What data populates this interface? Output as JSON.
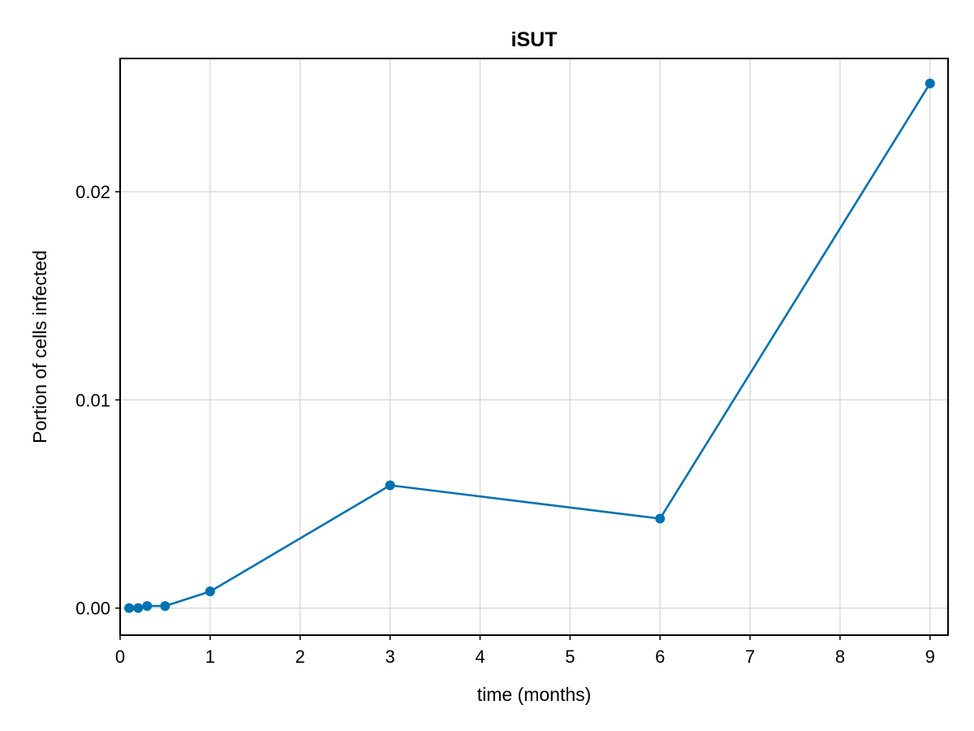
{
  "chart_data": {
    "type": "line",
    "title": "iSUT",
    "xlabel": "time (months)",
    "ylabel": "Portion of cells infected",
    "xlim": [
      0,
      9.2
    ],
    "ylim": [
      -0.0013,
      0.0264
    ],
    "xticks": [
      0,
      1,
      2,
      3,
      4,
      5,
      6,
      7,
      8,
      9
    ],
    "xtick_labels": [
      "0",
      "1",
      "2",
      "3",
      "4",
      "5",
      "6",
      "7",
      "8",
      "9"
    ],
    "yticks": [
      0.0,
      0.01,
      0.02
    ],
    "ytick_labels": [
      "0.00",
      "0.01",
      "0.02"
    ],
    "grid": true,
    "series": [
      {
        "color": "#0072b2",
        "markers": true,
        "x": [
          0.1,
          0.2,
          0.3,
          0.5,
          1,
          3,
          6,
          9
        ],
        "y": [
          0.0,
          0.0,
          0.0001,
          0.0001,
          0.0008,
          0.0059,
          0.0043,
          0.0252
        ]
      }
    ]
  }
}
